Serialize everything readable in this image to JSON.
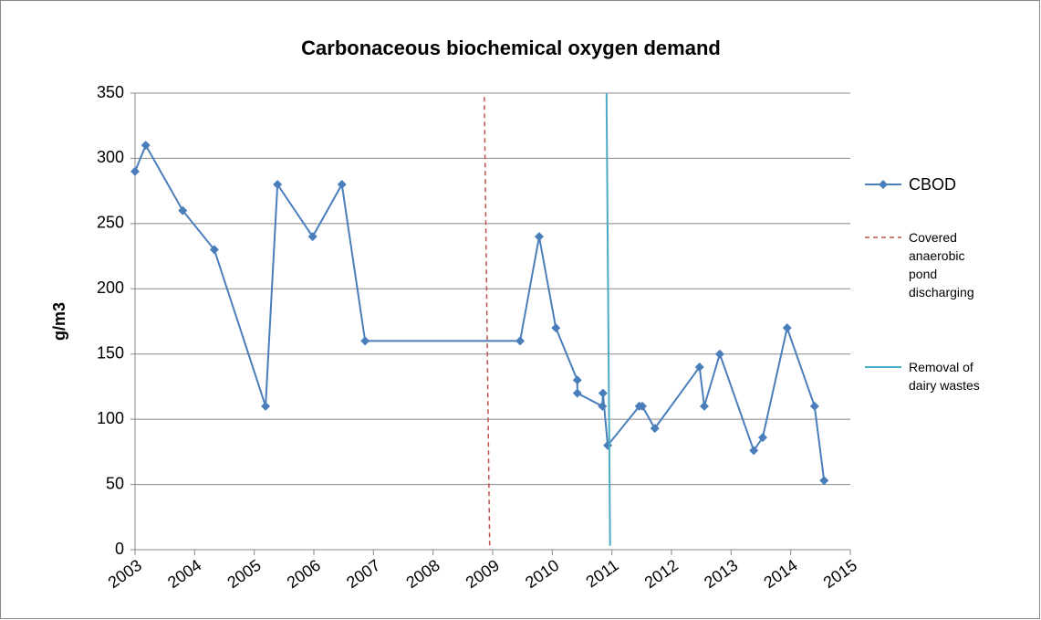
{
  "chart_data": {
    "type": "line",
    "title": "Carbonaceous biochemical oxygen demand",
    "y_label": "g/m3",
    "xlim": [
      2003,
      2015
    ],
    "xticks": [
      2003,
      2004,
      2005,
      2006,
      2007,
      2008,
      2009,
      2010,
      2011,
      2012,
      2013,
      2014,
      2015
    ],
    "ylim": [
      0,
      350
    ],
    "yticks": [
      0,
      50,
      100,
      150,
      200,
      250,
      300,
      350
    ],
    "grid": true,
    "legend": "right",
    "series": [
      {
        "name": "CBOD",
        "color": "#4a7ebb",
        "marker": "diamond",
        "x": [
          2003.0,
          2003.18,
          2003.8,
          2004.33,
          2005.19,
          2005.39,
          2005.98,
          2006.47,
          2006.86,
          2009.46,
          2009.78,
          2010.06,
          2010.42,
          2010.42,
          2010.84,
          2010.85,
          2010.93,
          2011.46,
          2011.51,
          2011.72,
          2012.47,
          2012.55,
          2012.81,
          2013.38,
          2013.53,
          2013.94,
          2014.4,
          2014.56
        ],
        "values": [
          290,
          310,
          260,
          230,
          110,
          280,
          240,
          280,
          160,
          160,
          240,
          170,
          130,
          120,
          110,
          120,
          80,
          110,
          110,
          93,
          140,
          110,
          150,
          76,
          86,
          170,
          110,
          53
        ]
      },
      {
        "name": "Covered anaerobic pond discharging",
        "color": "#c0504d",
        "dash": true,
        "x": [
          2008.86,
          2008.95
        ],
        "values": [
          347,
          0
        ]
      },
      {
        "name": "Removal of dairy wastes",
        "color": "#4bacc6",
        "dash": false,
        "x": [
          2010.91,
          2010.97
        ],
        "values": [
          350,
          3
        ]
      }
    ]
  }
}
